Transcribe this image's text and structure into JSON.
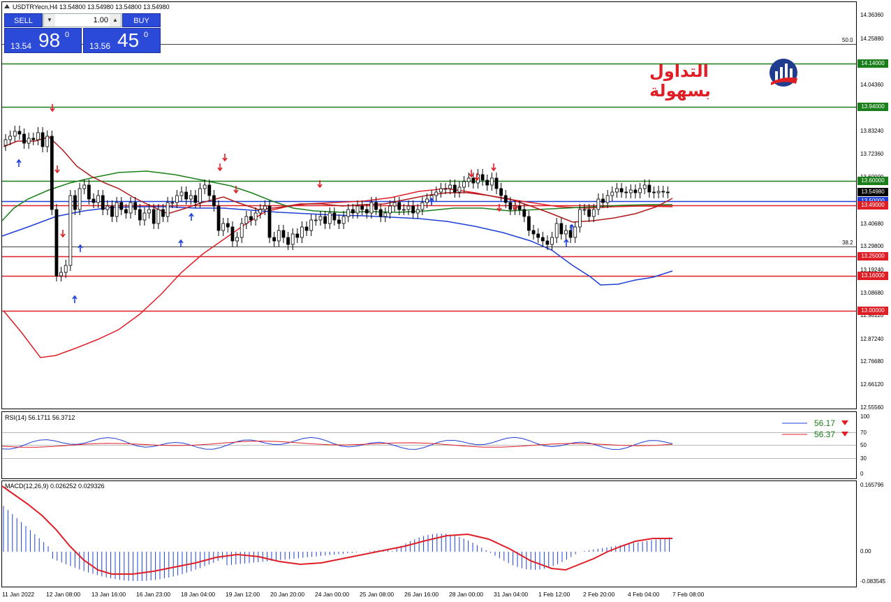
{
  "header": {
    "symbol_info": "USDTRYecn,H4  13.54800 13.54980 13.54800 13.54980"
  },
  "trade_panel": {
    "sell_label": "SELL",
    "buy_label": "BUY",
    "lot_value": "1.00",
    "sell_small": "13.54",
    "sell_big": "98",
    "sell_sup": "0",
    "buy_small": "13.56",
    "buy_big": "45",
    "buy_sup": "0"
  },
  "logo": {
    "text": "التداول بسهولة"
  },
  "price_axis": [
    "14.36360",
    "14.25880",
    "14.14000",
    "14.04360",
    "13.94000",
    "13.83240",
    "13.72360",
    "13.60000",
    "13.54980",
    "13.50000",
    "13.49000",
    "13.40680",
    "13.29800",
    "13.25000",
    "13.19240",
    "13.16000",
    "13.08680",
    "13.00000",
    "12.98120",
    "12.87240",
    "12.76680",
    "12.66120",
    "12.55560"
  ],
  "levels": [
    {
      "label": "14.14000",
      "color": "#1a7f1a"
    },
    {
      "label": "13.94000",
      "color": "#1a7f1a"
    },
    {
      "label": "13.60000",
      "color": "#1a7f1a"
    },
    {
      "label": "13.54980",
      "color": "#000000"
    },
    {
      "label": "13.50000",
      "color": "#1e3fd8"
    },
    {
      "label": "13.49000",
      "color": "#e01e26"
    },
    {
      "label": "13.25000",
      "color": "#e01e26"
    },
    {
      "label": "13.16000",
      "color": "#e01e26"
    },
    {
      "label": "13.00000",
      "color": "#e01e26"
    }
  ],
  "fibo": {
    "top": "50.0",
    "mid": "38.2"
  },
  "rsi": {
    "label": "RSI(14) 56.1711 56.3712",
    "axis": [
      "100",
      "70",
      "50",
      "30",
      "0"
    ],
    "legend": [
      {
        "value": "56.17",
        "color": "#1e3fd8"
      },
      {
        "value": "56.37",
        "color": "#e01e26"
      }
    ]
  },
  "macd": {
    "label": "MACD(12,26,9) 0.026252 0.029326",
    "axis": [
      "0.165796",
      "0.00",
      "-0.083545"
    ]
  },
  "time_axis": [
    "11 Jan 2022",
    "12 Jan 08:00",
    "13 Jan 16:00",
    "16 Jan 23:00",
    "18 Jan 04:00",
    "19 Jan 12:00",
    "20 Jan 20:00",
    "24 Jan 00:00",
    "25 Jan 08:00",
    "26 Jan 16:00",
    "28 Jan 00:00",
    "31 Jan 04:00",
    "1 Feb 12:00",
    "2 Feb 20:00",
    "4 Feb 04:00",
    "7 Feb 08:00"
  ],
  "colors": {
    "sell_buy": "#2c4ad8",
    "green_level": "#1a7f1a",
    "red_level": "#e01e26",
    "blue_level": "#1e3fd8"
  }
}
